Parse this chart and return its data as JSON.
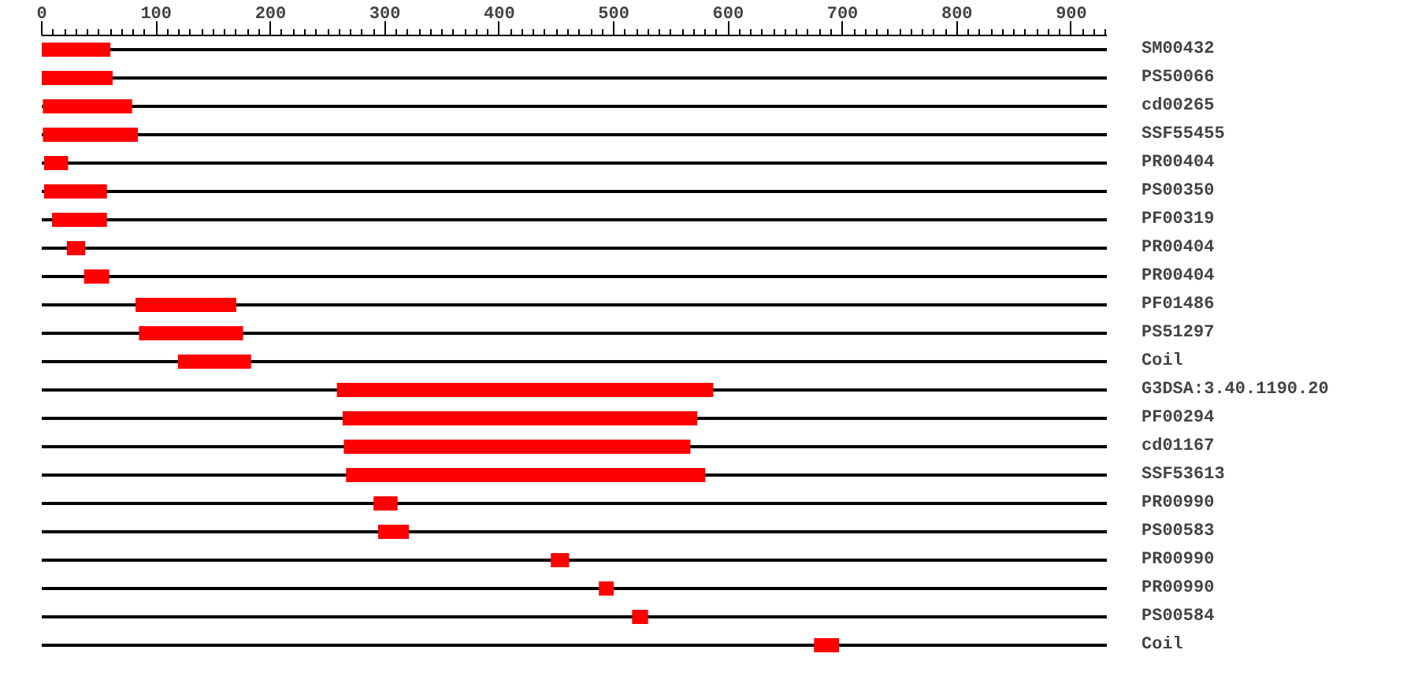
{
  "chart_data": {
    "type": "bar",
    "orientation": "horizontal",
    "color": "#ff0000",
    "categories": [
      "SM00432",
      "PS50066",
      "cd00265",
      "SSF55455",
      "PR00404",
      "PS00350",
      "PF00319",
      "PR00404",
      "PR00404",
      "PF01486",
      "PS51297",
      "Coil",
      "G3DSA:3.40.1190.20",
      "PF00294",
      "cd01167",
      "SSF53613",
      "PR00990",
      "PS00583",
      "PR00990",
      "PR00990",
      "PS00584",
      "Coil"
    ],
    "base": [
      0,
      0,
      1,
      1,
      2,
      2,
      9,
      22,
      37,
      82,
      85,
      119,
      258,
      263,
      264,
      266,
      290,
      294,
      445,
      487,
      516,
      675
    ],
    "values": [
      60,
      62,
      78,
      83,
      21,
      55,
      48,
      16,
      22,
      88,
      91,
      64,
      329,
      310,
      303,
      314,
      21,
      27,
      16,
      13,
      14,
      22
    ],
    "xlim": [
      0,
      931
    ],
    "xticks": [
      0,
      100,
      200,
      300,
      400,
      500,
      600,
      700,
      800,
      900
    ],
    "grid": false
  }
}
